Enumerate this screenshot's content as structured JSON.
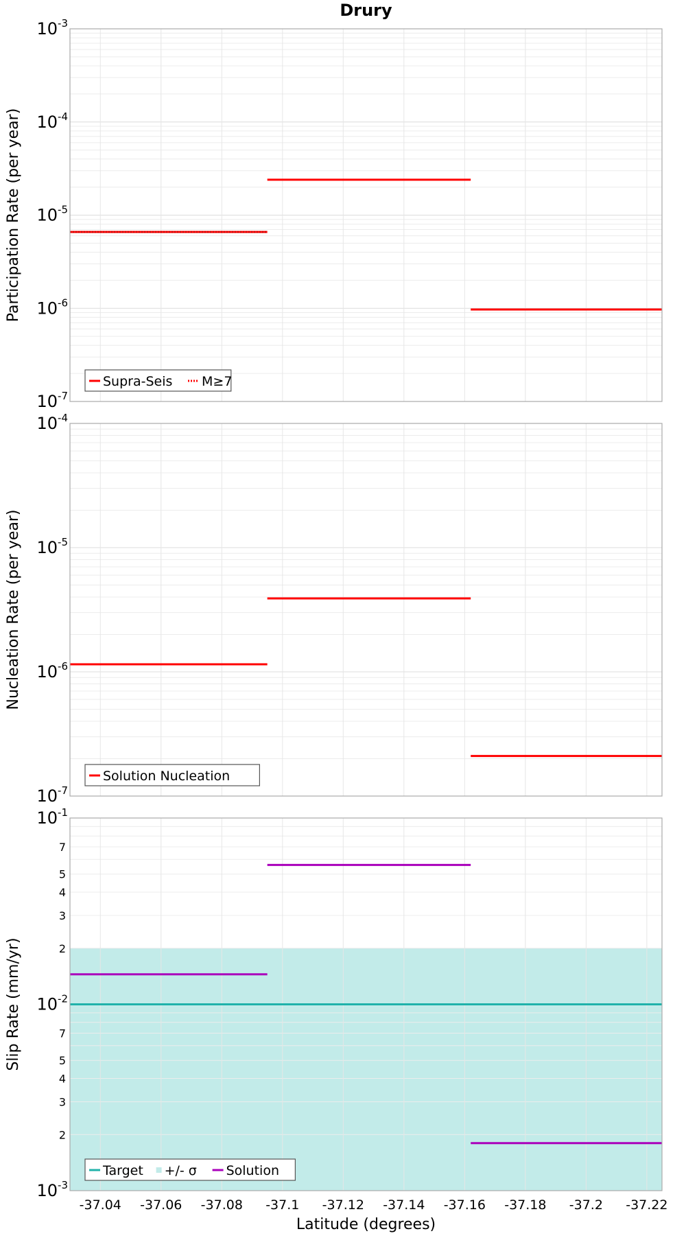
{
  "chart_data": [
    {
      "type": "line",
      "title": "Drury",
      "ylabel": "Participation Rate (per year)",
      "xlabel": "",
      "yscale": "log",
      "ylim": [
        1e-07,
        0.001
      ],
      "xlim": [
        -37.03,
        -37.225
      ],
      "x_ticks": [
        "-37.04",
        "-37.06",
        "-37.08",
        "-37.1",
        "-37.12",
        "-37.14",
        "-37.16",
        "-37.18",
        "-37.2",
        "-37.22"
      ],
      "grid": true,
      "legend_position": "bottom-left",
      "series": [
        {
          "name": "Supra-Seis",
          "color": "#ff0000",
          "style": "solid",
          "segments": [
            {
              "x": [
                -37.03,
                -37.095
              ],
              "y": 6.6e-06
            },
            {
              "x": [
                -37.095,
                -37.162
              ],
              "y": 2.4e-05
            },
            {
              "x": [
                -37.162,
                -37.225
              ],
              "y": 9.7e-07
            }
          ]
        },
        {
          "name": "M≥7",
          "color": "#ff0000",
          "style": "dotted",
          "segments": [
            {
              "x": [
                -37.03,
                -37.095
              ],
              "y": 6.6e-06
            }
          ]
        }
      ]
    },
    {
      "type": "line",
      "title": "",
      "ylabel": "Nucleation Rate (per year)",
      "xlabel": "",
      "yscale": "log",
      "ylim": [
        1e-07,
        0.0001
      ],
      "xlim": [
        -37.03,
        -37.225
      ],
      "x_ticks": [
        "-37.04",
        "-37.06",
        "-37.08",
        "-37.1",
        "-37.12",
        "-37.14",
        "-37.16",
        "-37.18",
        "-37.2",
        "-37.22"
      ],
      "grid": true,
      "legend_position": "bottom-left",
      "series": [
        {
          "name": "Solution Nucleation",
          "color": "#ff0000",
          "style": "solid",
          "segments": [
            {
              "x": [
                -37.03,
                -37.095
              ],
              "y": 1.15e-06
            },
            {
              "x": [
                -37.095,
                -37.162
              ],
              "y": 3.9e-06
            },
            {
              "x": [
                -37.162,
                -37.225
              ],
              "y": 2.1e-07
            }
          ]
        }
      ]
    },
    {
      "type": "line",
      "title": "",
      "ylabel": "Slip Rate (mm/yr)",
      "xlabel": "Latitude (degrees)",
      "yscale": "log",
      "ylim": [
        0.001,
        0.1
      ],
      "xlim": [
        -37.03,
        -37.225
      ],
      "x_ticks": [
        "-37.04",
        "-37.06",
        "-37.08",
        "-37.1",
        "-37.12",
        "-37.14",
        "-37.16",
        "-37.18",
        "-37.2",
        "-37.22"
      ],
      "minor_tick_labels": [
        "2",
        "3",
        "4",
        "5",
        "7"
      ],
      "grid": true,
      "legend_position": "bottom-left",
      "series": [
        {
          "name": "Target",
          "color": "#20b2aa",
          "style": "solid",
          "segments": [
            {
              "x": [
                -37.03,
                -37.225
              ],
              "y": 0.01
            }
          ]
        },
        {
          "name": "+/- σ",
          "color": "#c2ebe9",
          "style": "band",
          "band": {
            "x": [
              -37.03,
              -37.225
            ],
            "low": 0.001,
            "high": 0.02
          }
        },
        {
          "name": "Solution",
          "color": "#aa00bb",
          "style": "solid",
          "segments": [
            {
              "x": [
                -37.03,
                -37.095
              ],
              "y": 0.0145
            },
            {
              "x": [
                -37.095,
                -37.162
              ],
              "y": 0.056
            },
            {
              "x": [
                -37.162,
                -37.225
              ],
              "y": 0.0018
            }
          ]
        }
      ]
    }
  ]
}
